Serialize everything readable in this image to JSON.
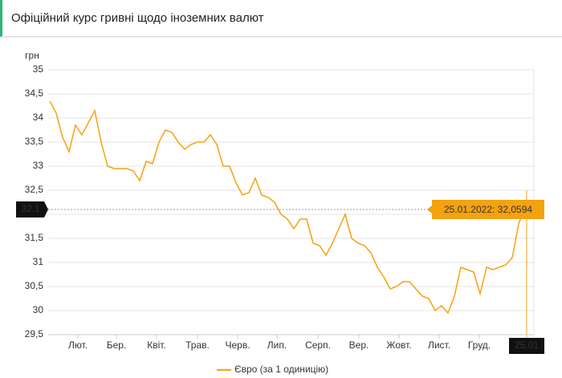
{
  "header": {
    "title": "Офіційний курс гривні щодо іноземних валют"
  },
  "chart_data": {
    "type": "line",
    "y_label": "грн",
    "x": [
      0.04,
      0.2,
      0.36,
      0.52,
      0.68,
      0.84,
      1,
      1.16,
      1.32,
      1.48,
      1.64,
      1.8,
      1.96,
      2.12,
      2.28,
      2.44,
      2.6,
      2.76,
      2.92,
      3.08,
      3.24,
      3.4,
      3.56,
      3.72,
      3.88,
      4.04,
      4.2,
      4.36,
      4.52,
      4.68,
      4.84,
      5,
      5.16,
      5.32,
      5.48,
      5.64,
      5.8,
      5.96,
      6.12,
      6.28,
      6.44,
      6.6,
      6.76,
      6.92,
      7.08,
      7.24,
      7.4,
      7.56,
      7.72,
      7.88,
      8.04,
      8.2,
      8.36,
      8.52,
      8.68,
      8.84,
      9,
      9.16,
      9.32,
      9.48,
      9.64,
      9.8,
      9.96,
      10.12,
      10.28,
      10.44,
      10.6,
      10.76,
      10.92,
      11.08,
      11.24,
      11.4,
      11.56,
      11.72,
      11.88,
      11.92
    ],
    "series": [
      {
        "name": "Євро (за 1 одиницію)",
        "color": "#f5a20f",
        "values": [
          34.35,
          34.1,
          33.6,
          33.3,
          33.85,
          33.65,
          33.9,
          34.15,
          33.5,
          33.0,
          32.95,
          32.95,
          32.95,
          32.9,
          32.7,
          33.1,
          33.05,
          33.5,
          33.75,
          33.7,
          33.5,
          33.35,
          33.45,
          33.5,
          33.5,
          33.65,
          33.45,
          33.0,
          33.0,
          32.65,
          32.4,
          32.45,
          32.75,
          32.4,
          32.35,
          32.25,
          32.0,
          31.9,
          31.7,
          31.9,
          31.9,
          31.4,
          31.35,
          31.15,
          31.4,
          31.7,
          32.0,
          31.5,
          31.4,
          31.35,
          31.2,
          30.9,
          30.7,
          30.45,
          30.5,
          30.6,
          30.6,
          30.45,
          30.3,
          30.25,
          30.0,
          30.1,
          29.95,
          30.3,
          30.9,
          30.85,
          30.8,
          30.35,
          30.9,
          30.85,
          30.9,
          30.95,
          31.1,
          31.8,
          32.15,
          32.0594
        ]
      }
    ],
    "xlim": [
      0,
      12.1
    ],
    "xticks": [
      {
        "value": 0.74,
        "label": "Лют."
      },
      {
        "value": 1.7,
        "label": "Бер."
      },
      {
        "value": 2.7,
        "label": "Квіт."
      },
      {
        "value": 3.72,
        "label": "Трав."
      },
      {
        "value": 4.72,
        "label": "Черв."
      },
      {
        "value": 5.7,
        "label": "Лип."
      },
      {
        "value": 6.72,
        "label": "Серп."
      },
      {
        "value": 7.74,
        "label": "Вер."
      },
      {
        "value": 8.74,
        "label": "Жовт."
      },
      {
        "value": 9.74,
        "label": "Лист."
      },
      {
        "value": 10.74,
        "label": "Груд."
      },
      {
        "value": 11.92,
        "label": "25.01"
      }
    ],
    "ylim": [
      29.5,
      35
    ],
    "yticks": [
      {
        "value": 29.5,
        "label": "29,5"
      },
      30,
      {
        "value": 30.5,
        "label": "30,5"
      },
      31,
      {
        "value": 31.5,
        "label": "31,5"
      },
      32,
      {
        "value": 32.5,
        "label": "32,5"
      },
      33,
      {
        "value": 33.5,
        "label": "33,5"
      },
      34,
      {
        "value": 34.5,
        "label": "34,5"
      },
      35
    ],
    "grid": true,
    "crosshair": {
      "value": 32.1,
      "label": "32,1"
    },
    "tooltip": "25.01.2022: 32,0594"
  }
}
